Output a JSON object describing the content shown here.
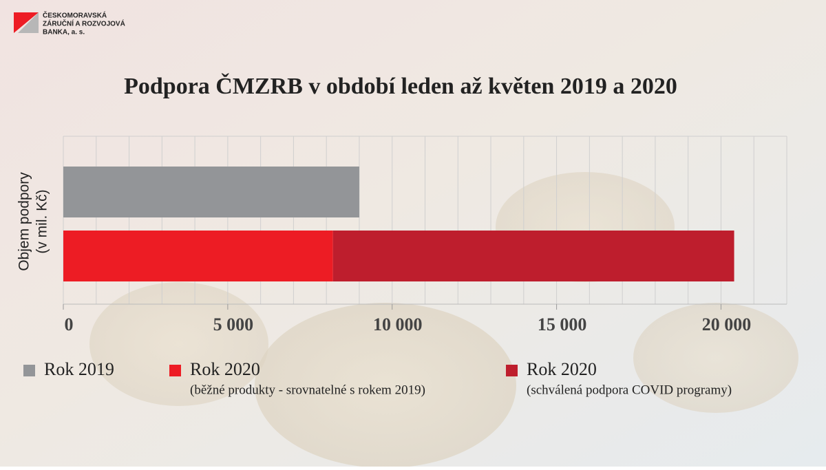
{
  "logo": {
    "lines": [
      "ČESKOMORAVSKÁ",
      "ZÁRUČNÍ A ROZVOJOVÁ",
      "BANKA, a. s."
    ]
  },
  "chart_data": {
    "type": "stacked-barh",
    "title": "Podpora ČMZRB v období leden až květen 2019 a 2020",
    "ylabel": [
      "Objem podpory",
      "(v mil. Kč)"
    ],
    "categories": [
      null,
      null
    ],
    "series": [
      {
        "name": "Rok 2019",
        "color": "#939598",
        "values": [
          9000,
          null
        ]
      },
      {
        "name": "Rok 2020",
        "description": "(běžné produkty - srovnatelné s rokem 2019)",
        "color": "#ed1c24",
        "values": [
          null,
          8200
        ]
      },
      {
        "name": "Rok 2020",
        "description": "(schválená podpora COVID programy)",
        "color": "#be1e2d",
        "values": [
          null,
          12200
        ]
      }
    ],
    "xlim": [
      0,
      22000
    ],
    "xticks": [
      0,
      {
        "value": 5000,
        "label": "5 000"
      },
      {
        "value": 10000,
        "label": "10 000"
      },
      {
        "value": 15000,
        "label": "15 000"
      },
      {
        "value": 20000,
        "label": "20 000"
      }
    ],
    "minor_grid_step": 1000,
    "grid": true,
    "legend": "bottom"
  }
}
